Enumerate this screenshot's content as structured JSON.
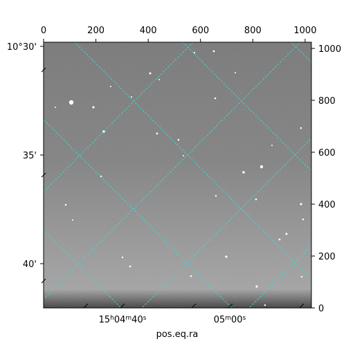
{
  "figure": {
    "xlabel": "pos.eq.ra",
    "top_axis_ticks": [
      "0",
      "200",
      "400",
      "600",
      "800",
      "1000"
    ],
    "right_axis_ticks": [
      "0",
      "200",
      "400",
      "600",
      "800",
      "1000"
    ],
    "left_axis_ticks": [
      "10°30'",
      "35'",
      "40'"
    ],
    "bottom_axis_ticks": [
      {
        "h": "15",
        "hs": "h",
        "m": "04",
        "ms": "m",
        "s": "40",
        "ss": "s"
      },
      {
        "h": "",
        "hs": "",
        "m": "05",
        "ms": "m",
        "s": "00",
        "ss": "s"
      }
    ]
  },
  "colors": {
    "grid": "#3fd8d8",
    "frame": "#000000",
    "sky_dark": "#5e5e5e",
    "sky_light": "#a0a0a0"
  }
}
